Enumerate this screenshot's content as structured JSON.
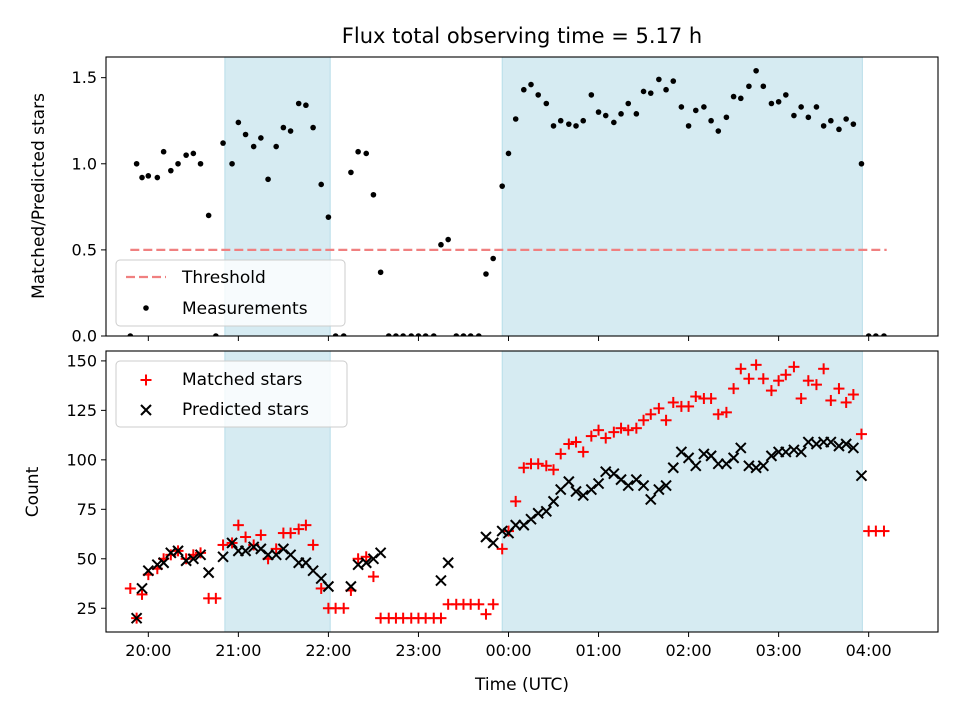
{
  "chart_data": [
    {
      "type": "scatter",
      "title": "Flux total observing time = 5.17 h",
      "xlabel": "",
      "ylabel": "Matched/Predicted stars",
      "xlim": [
        19.53,
        28.77
      ],
      "ylim": [
        0,
        1.62
      ],
      "xticks": [
        20,
        21,
        22,
        23,
        24,
        25,
        26,
        27,
        28
      ],
      "yticks": [
        0.0,
        0.5,
        1.0,
        1.5
      ],
      "ytick_labels": [
        "0.0",
        "0.5",
        "1.0",
        "1.5"
      ],
      "shaded_regions": [
        [
          20.85,
          22.02
        ],
        [
          23.93,
          27.93
        ]
      ],
      "threshold": {
        "name": "Threshold",
        "value": 0.5,
        "x_range": [
          19.8,
          28.2
        ],
        "color": "#f08080"
      },
      "series": [
        {
          "name": "Measurements",
          "marker": "dot",
          "color": "#000000",
          "x": [
            19.8,
            19.87,
            19.93,
            20.0,
            20.1,
            20.17,
            20.25,
            20.33,
            20.42,
            20.5,
            20.58,
            20.67,
            20.75,
            20.83,
            20.93,
            21.0,
            21.08,
            21.17,
            21.25,
            21.33,
            21.42,
            21.5,
            21.58,
            21.67,
            21.75,
            21.83,
            21.92,
            22.0,
            22.08,
            22.17,
            22.25,
            22.33,
            22.42,
            22.5,
            22.58,
            22.67,
            22.75,
            22.83,
            22.92,
            23.0,
            23.08,
            23.17,
            23.25,
            23.33,
            23.42,
            23.5,
            23.58,
            23.67,
            23.75,
            23.83,
            23.93,
            24.0,
            24.08,
            24.17,
            24.25,
            24.33,
            24.42,
            24.5,
            24.58,
            24.67,
            24.75,
            24.83,
            24.92,
            25.0,
            25.08,
            25.17,
            25.25,
            25.33,
            25.42,
            25.5,
            25.58,
            25.67,
            25.75,
            25.83,
            25.92,
            26.0,
            26.08,
            26.17,
            26.25,
            26.33,
            26.42,
            26.5,
            26.58,
            26.67,
            26.75,
            26.83,
            26.92,
            27.0,
            27.08,
            27.17,
            27.25,
            27.33,
            27.42,
            27.5,
            27.58,
            27.67,
            27.75,
            27.83,
            27.92,
            28.0,
            28.08,
            28.17
          ],
          "y": [
            0.0,
            1.0,
            0.92,
            0.93,
            0.92,
            1.07,
            0.96,
            1.0,
            1.05,
            1.06,
            1.0,
            0.7,
            0.0,
            1.12,
            1.0,
            1.24,
            1.17,
            1.1,
            1.15,
            0.91,
            1.1,
            1.21,
            1.19,
            1.35,
            1.34,
            1.21,
            0.88,
            0.69,
            0.0,
            0.0,
            0.95,
            1.07,
            1.06,
            0.82,
            0.37,
            0.0,
            0.0,
            0.0,
            0.0,
            0.0,
            0.0,
            0.0,
            0.53,
            0.56,
            0.0,
            0.0,
            0.0,
            0.0,
            0.36,
            0.45,
            0.87,
            1.06,
            1.26,
            1.43,
            1.46,
            1.4,
            1.35,
            1.22,
            1.25,
            1.23,
            1.22,
            1.25,
            1.4,
            1.3,
            1.28,
            1.24,
            1.29,
            1.35,
            1.29,
            1.42,
            1.41,
            1.49,
            1.43,
            1.48,
            1.33,
            1.22,
            1.31,
            1.33,
            1.25,
            1.19,
            1.27,
            1.39,
            1.38,
            1.45,
            1.54,
            1.45,
            1.35,
            1.36,
            1.4,
            1.28,
            1.33,
            1.27,
            1.33,
            1.22,
            1.25,
            1.2,
            1.26,
            1.23,
            1.0,
            0.0,
            0.0,
            0.0
          ]
        }
      ],
      "legend": [
        "Threshold",
        "Measurements"
      ],
      "legend_position": "lower-left"
    },
    {
      "type": "scatter",
      "title": "",
      "xlabel": "Time (UTC)",
      "ylabel": "Count",
      "xlim": [
        19.53,
        28.77
      ],
      "ylim": [
        13,
        155
      ],
      "xticks": [
        20,
        21,
        22,
        23,
        24,
        25,
        26,
        27,
        28
      ],
      "xtick_labels": [
        "20:00",
        "21:00",
        "22:00",
        "23:00",
        "00:00",
        "01:00",
        "02:00",
        "03:00",
        "04:00"
      ],
      "yticks": [
        25,
        50,
        75,
        100,
        125,
        150
      ],
      "ytick_labels": [
        "25",
        "50",
        "75",
        "100",
        "125",
        "150"
      ],
      "shaded_regions": [
        [
          20.85,
          22.02
        ],
        [
          23.93,
          27.93
        ]
      ],
      "series": [
        {
          "name": "Matched stars",
          "marker": "plus",
          "color": "#ff0000",
          "x": [
            19.8,
            19.87,
            19.93,
            20.0,
            20.1,
            20.17,
            20.25,
            20.33,
            20.42,
            20.5,
            20.58,
            20.67,
            20.75,
            20.83,
            20.93,
            21.0,
            21.08,
            21.17,
            21.25,
            21.33,
            21.42,
            21.5,
            21.58,
            21.67,
            21.75,
            21.83,
            21.92,
            22.0,
            22.08,
            22.17,
            22.25,
            22.33,
            22.42,
            22.5,
            22.58,
            22.67,
            22.75,
            22.83,
            22.92,
            23.0,
            23.08,
            23.17,
            23.25,
            23.33,
            23.42,
            23.5,
            23.58,
            23.67,
            23.75,
            23.83,
            23.93,
            24.0,
            24.08,
            24.17,
            24.25,
            24.33,
            24.42,
            24.5,
            24.58,
            24.67,
            24.75,
            24.83,
            24.92,
            25.0,
            25.08,
            25.17,
            25.25,
            25.33,
            25.42,
            25.5,
            25.58,
            25.67,
            25.75,
            25.83,
            25.92,
            26.0,
            26.08,
            26.17,
            26.25,
            26.33,
            26.42,
            26.5,
            26.58,
            26.67,
            26.75,
            26.83,
            26.92,
            27.0,
            27.08,
            27.17,
            27.25,
            27.33,
            27.42,
            27.5,
            27.58,
            27.67,
            27.75,
            27.83,
            27.92,
            28.0,
            28.08,
            28.17
          ],
          "y": [
            35,
            20,
            32,
            42,
            45,
            50,
            52,
            54,
            50,
            52,
            53,
            30,
            30,
            57,
            58,
            67,
            61,
            57,
            62,
            50,
            55,
            63,
            63,
            65,
            67,
            57,
            35,
            25,
            25,
            25,
            34,
            50,
            51,
            41,
            20,
            20,
            20,
            20,
            20,
            20,
            20,
            20,
            20,
            27,
            27,
            27,
            27,
            27,
            22,
            27,
            55,
            64,
            79,
            96,
            98,
            98,
            97,
            95,
            103,
            108,
            109,
            104,
            112,
            115,
            111,
            114,
            116,
            115,
            116,
            120,
            123,
            126,
            120,
            129,
            127,
            127,
            132,
            131,
            131,
            123,
            124,
            136,
            146,
            141,
            148,
            141,
            135,
            140,
            143,
            147,
            131,
            140,
            138,
            146,
            130,
            136,
            129,
            133,
            113,
            64,
            64,
            64
          ]
        },
        {
          "name": "Predicted stars",
          "marker": "x",
          "color": "#000000",
          "x": [
            19.87,
            19.93,
            20.0,
            20.1,
            20.17,
            20.25,
            20.33,
            20.42,
            20.5,
            20.58,
            20.67,
            20.83,
            20.93,
            21.0,
            21.08,
            21.17,
            21.25,
            21.33,
            21.42,
            21.5,
            21.58,
            21.67,
            21.75,
            21.83,
            21.92,
            22.0,
            22.25,
            22.33,
            22.42,
            22.5,
            22.58,
            23.25,
            23.33,
            23.75,
            23.83,
            23.93,
            24.0,
            24.08,
            24.17,
            24.25,
            24.33,
            24.42,
            24.5,
            24.58,
            24.67,
            24.75,
            24.83,
            24.92,
            25.0,
            25.08,
            25.17,
            25.25,
            25.33,
            25.42,
            25.5,
            25.58,
            25.67,
            25.75,
            25.83,
            25.92,
            26.0,
            26.08,
            26.17,
            26.25,
            26.33,
            26.42,
            26.5,
            26.58,
            26.67,
            26.75,
            26.83,
            26.92,
            27.0,
            27.08,
            27.17,
            27.25,
            27.33,
            27.42,
            27.5,
            27.58,
            27.67,
            27.75,
            27.83,
            27.92
          ],
          "y": [
            20,
            35,
            44,
            47,
            48,
            53,
            54,
            49,
            50,
            52,
            43,
            51,
            58,
            54,
            54,
            56,
            55,
            52,
            52,
            55,
            52,
            48,
            48,
            44,
            40,
            36,
            36,
            47,
            48,
            50,
            53,
            39,
            48,
            61,
            58,
            64,
            63,
            67,
            67,
            70,
            73,
            74,
            79,
            85,
            89,
            84,
            82,
            85,
            88,
            94,
            93,
            90,
            87,
            90,
            87,
            80,
            85,
            87,
            96,
            104,
            101,
            97,
            103,
            102,
            98,
            98,
            101,
            106,
            97,
            96,
            97,
            102,
            104,
            104,
            105,
            104,
            109,
            108,
            109,
            109,
            107,
            108,
            106,
            92
          ]
        }
      ],
      "legend": [
        "Matched stars",
        "Predicted stars"
      ],
      "legend_position": "upper-left"
    }
  ]
}
